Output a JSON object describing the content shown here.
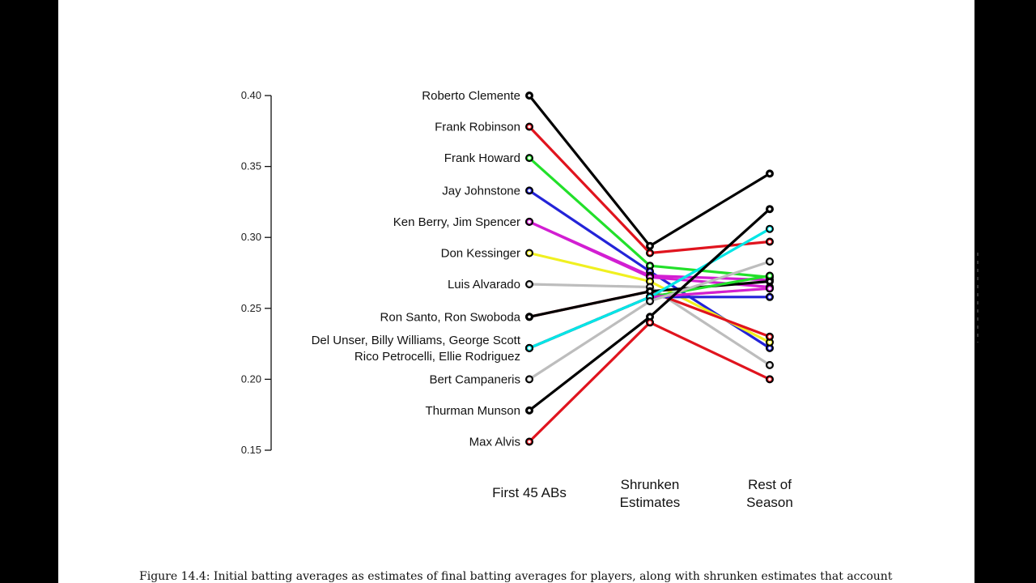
{
  "page": {
    "caption": "Figure 14.4: Initial batting averages as estimates of final batting averages for players, along with shrunken estimates that account"
  },
  "chart_data": {
    "type": "line",
    "x": [
      "First 45 ABs",
      "Shrunken Estimates",
      "Rest of Season"
    ],
    "x_labels": [
      [
        "First 45 ABs"
      ],
      [
        "Shrunken",
        "Estimates"
      ],
      [
        "Rest of",
        "Season"
      ]
    ],
    "ylim": [
      0.15,
      0.4
    ],
    "y_ticks": [
      "0.40",
      "0.35",
      "0.30",
      "0.25",
      "0.20",
      "0.15"
    ],
    "group_labels": [
      {
        "lines": [
          "Roberto Clemente"
        ],
        "value": 0.4
      },
      {
        "lines": [
          "Frank Robinson"
        ],
        "value": 0.378
      },
      {
        "lines": [
          "Frank Howard"
        ],
        "value": 0.356
      },
      {
        "lines": [
          "Jay Johnstone"
        ],
        "value": 0.333
      },
      {
        "lines": [
          "Ken Berry, Jim Spencer"
        ],
        "value": 0.311
      },
      {
        "lines": [
          "Don Kessinger"
        ],
        "value": 0.289
      },
      {
        "lines": [
          "Luis Alvarado"
        ],
        "value": 0.267
      },
      {
        "lines": [
          "Ron Santo, Ron Swoboda"
        ],
        "value": 0.244
      },
      {
        "lines": [
          "Del Unser, Billy Williams, George Scott",
          "Rico Petrocelli, Ellie Rodriguez"
        ],
        "value": 0.222
      },
      {
        "lines": [
          "Bert Campaneris"
        ],
        "value": 0.2
      },
      {
        "lines": [
          "Thurman Munson"
        ],
        "value": 0.178
      },
      {
        "lines": [
          "Max Alvis"
        ],
        "value": 0.156
      }
    ],
    "series": [
      {
        "color": "#000000",
        "values": [
          0.4,
          0.294,
          0.345
        ]
      },
      {
        "color": "#e0141e",
        "values": [
          0.378,
          0.289,
          0.297
        ]
      },
      {
        "color": "#22e02a",
        "values": [
          0.356,
          0.28,
          0.272
        ]
      },
      {
        "color": "#2323d8",
        "values": [
          0.333,
          0.276,
          0.222
        ]
      },
      {
        "color": "#d21ed2",
        "values": [
          0.311,
          0.273,
          0.27
        ]
      },
      {
        "color": "#d21ed2",
        "values": [
          0.311,
          0.272,
          0.265
        ]
      },
      {
        "color": "#f0f020",
        "values": [
          0.289,
          0.269,
          0.226
        ]
      },
      {
        "color": "#bdbdbd",
        "values": [
          0.267,
          0.265,
          0.21
        ]
      },
      {
        "color": "#e0141e",
        "values": [
          0.244,
          0.262,
          0.23
        ]
      },
      {
        "color": "#000000",
        "values": [
          0.244,
          0.262,
          0.269
        ]
      },
      {
        "color": "#f0f020",
        "values": [
          0.222,
          0.258,
          0.264
        ]
      },
      {
        "color": "#2323d8",
        "values": [
          0.222,
          0.258,
          0.258
        ]
      },
      {
        "color": "#22e02a",
        "values": [
          0.222,
          0.258,
          0.273
        ]
      },
      {
        "color": "#d21ed2",
        "values": [
          0.222,
          0.258,
          0.264
        ]
      },
      {
        "color": "#00e6e6",
        "values": [
          0.222,
          0.258,
          0.306
        ]
      },
      {
        "color": "#bdbdbd",
        "values": [
          0.2,
          0.255,
          0.283
        ]
      },
      {
        "color": "#000000",
        "values": [
          0.178,
          0.244,
          0.32
        ]
      },
      {
        "color": "#e0141e",
        "values": [
          0.156,
          0.24,
          0.2
        ]
      }
    ],
    "legend": "none",
    "grid": false
  },
  "colors": {
    "background": "#000000",
    "page": "#ffffff",
    "axis": "#111111"
  }
}
